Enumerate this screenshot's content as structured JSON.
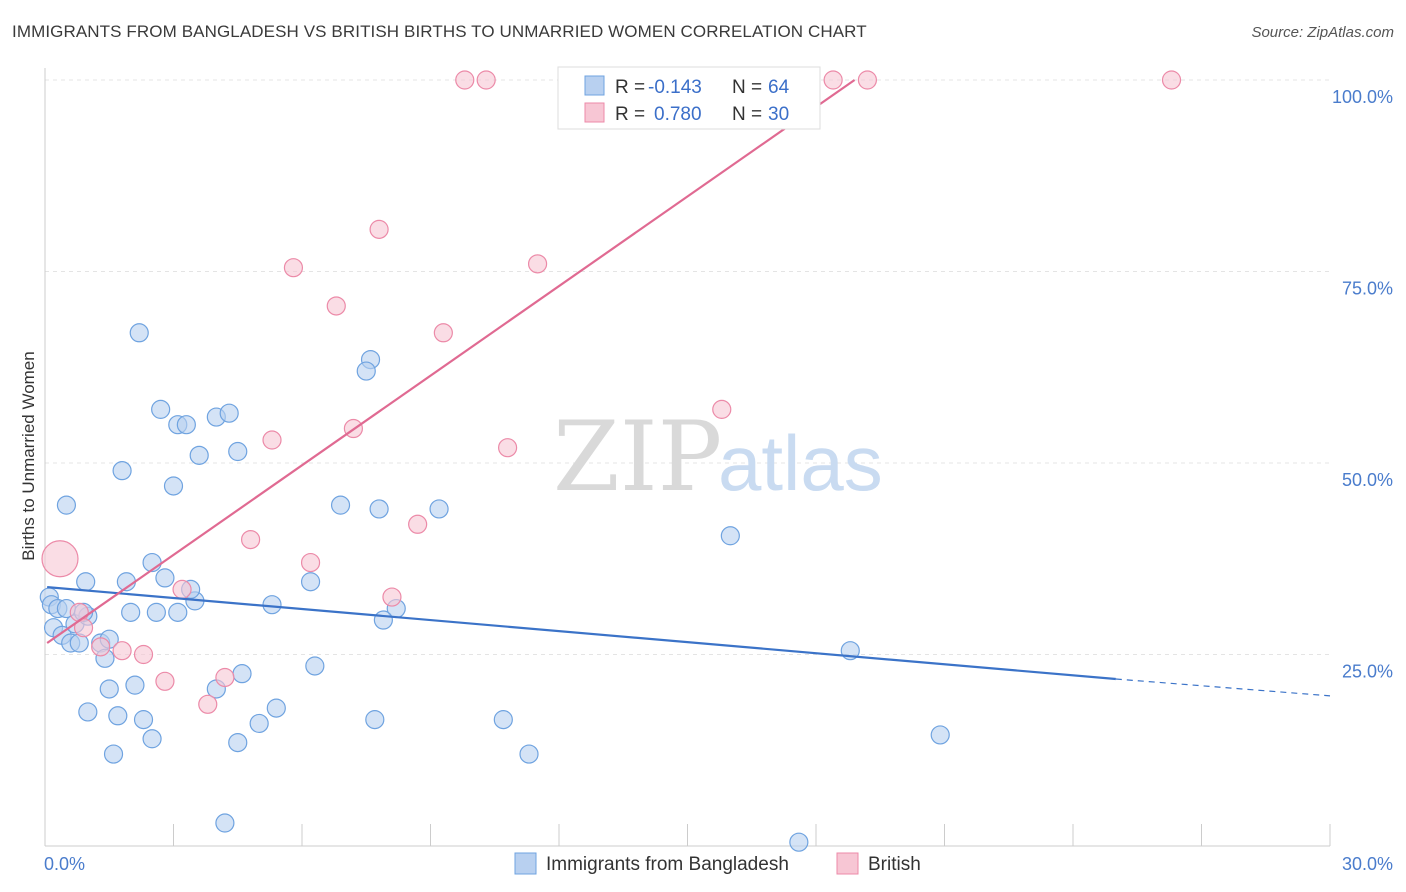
{
  "header": {
    "title": "IMMIGRANTS FROM BANGLADESH VS BRITISH BIRTHS TO UNMARRIED WOMEN CORRELATION CHART",
    "source": "Source: ZipAtlas.com"
  },
  "watermark": {
    "zip": "ZIP",
    "atlas": "atlas"
  },
  "legend_top": {
    "row1": {
      "r_label": "R =",
      "r_value": "-0.143",
      "n_label": "N =",
      "n_value": "64"
    },
    "row2": {
      "r_label": "R =",
      "r_value": "0.780",
      "n_label": "N =",
      "n_value": "30"
    }
  },
  "chart_data": {
    "type": "scatter",
    "title": "IMMIGRANTS FROM BANGLADESH VS BRITISH BIRTHS TO UNMARRIED WOMEN CORRELATION CHART",
    "xlabel": "",
    "ylabel": "Births to Unmarried Women",
    "xlim": [
      0,
      30
    ],
    "ylim": [
      0,
      102
    ],
    "x_tick_labels": [
      "0.0%",
      "30.0%"
    ],
    "y_ticks": [
      25,
      50,
      75,
      100
    ],
    "y_tick_labels": [
      "25.0%",
      "50.0%",
      "75.0%",
      "100.0%"
    ],
    "grid": true,
    "legend": "bottom",
    "colors": {
      "blue": "#6fa3e0",
      "blue_fill": "#b8d0f0",
      "pink": "#ec8aa8",
      "pink_fill": "#f7c6d4",
      "blue_line": "#3b73c8",
      "pink_line": "#e06a92"
    },
    "series": [
      {
        "name": "Immigrants from Bangladesh",
        "color": "blue",
        "trend": {
          "x1": 0.05,
          "y1": 33.8,
          "x2": 25.0,
          "y2": 21.8,
          "dash_to_x": 30.0,
          "dash_to_y": 19.6
        },
        "points": [
          [
            0.1,
            32.5
          ],
          [
            0.15,
            31.5
          ],
          [
            0.3,
            31.0
          ],
          [
            0.5,
            31.0
          ],
          [
            0.2,
            28.5
          ],
          [
            0.4,
            27.5
          ],
          [
            0.6,
            26.5
          ],
          [
            0.8,
            26.5
          ],
          [
            0.7,
            29.0
          ],
          [
            1.0,
            30.0
          ],
          [
            0.9,
            30.5
          ],
          [
            1.3,
            26.5
          ],
          [
            1.5,
            27.0
          ],
          [
            1.4,
            24.5
          ],
          [
            0.95,
            34.5
          ],
          [
            0.5,
            44.5
          ],
          [
            1.8,
            49.0
          ],
          [
            2.2,
            67.0
          ],
          [
            2.5,
            37.0
          ],
          [
            1.9,
            34.5
          ],
          [
            2.0,
            30.5
          ],
          [
            2.6,
            30.5
          ],
          [
            2.8,
            35.0
          ],
          [
            3.0,
            47.0
          ],
          [
            3.1,
            55.0
          ],
          [
            3.3,
            55.0
          ],
          [
            3.5,
            32.0
          ],
          [
            3.4,
            33.5
          ],
          [
            3.1,
            30.5
          ],
          [
            3.6,
            51.0
          ],
          [
            2.7,
            57.0
          ],
          [
            4.0,
            56.0
          ],
          [
            4.3,
            56.5
          ],
          [
            4.5,
            51.5
          ],
          [
            1.5,
            20.5
          ],
          [
            1.7,
            17.0
          ],
          [
            2.1,
            21.0
          ],
          [
            2.3,
            16.5
          ],
          [
            2.5,
            14.0
          ],
          [
            1.0,
            17.5
          ],
          [
            1.6,
            12.0
          ],
          [
            4.0,
            20.5
          ],
          [
            4.6,
            22.5
          ],
          [
            4.5,
            13.5
          ],
          [
            5.3,
            31.5
          ],
          [
            5.0,
            16.0
          ],
          [
            5.4,
            18.0
          ],
          [
            6.2,
            34.5
          ],
          [
            6.3,
            23.5
          ],
          [
            6.9,
            44.5
          ],
          [
            7.6,
            63.5
          ],
          [
            7.5,
            62.0
          ],
          [
            7.8,
            44.0
          ],
          [
            7.7,
            16.5
          ],
          [
            8.2,
            31.0
          ],
          [
            7.9,
            29.5
          ],
          [
            9.2,
            44.0
          ],
          [
            10.7,
            16.5
          ],
          [
            11.3,
            12.0
          ],
          [
            16.0,
            40.5
          ],
          [
            18.8,
            25.5
          ],
          [
            20.9,
            14.5
          ],
          [
            17.6,
            0.5
          ],
          [
            4.2,
            3.0
          ]
        ]
      },
      {
        "name": "British",
        "color": "pink",
        "trend": {
          "x1": 0.05,
          "y1": 26.5,
          "x2": 18.9,
          "y2": 100.0
        },
        "points": [
          [
            0.35,
            37.5
          ],
          [
            0.8,
            30.5
          ],
          [
            0.9,
            28.5
          ],
          [
            1.3,
            26.0
          ],
          [
            1.8,
            25.5
          ],
          [
            2.3,
            25.0
          ],
          [
            2.8,
            21.5
          ],
          [
            3.2,
            33.5
          ],
          [
            3.8,
            18.5
          ],
          [
            4.2,
            22.0
          ],
          [
            4.8,
            40.0
          ],
          [
            5.3,
            53.0
          ],
          [
            5.8,
            75.5
          ],
          [
            6.2,
            37.0
          ],
          [
            6.8,
            70.5
          ],
          [
            7.2,
            54.5
          ],
          [
            7.8,
            80.5
          ],
          [
            8.1,
            32.5
          ],
          [
            8.7,
            42.0
          ],
          [
            9.3,
            67.0
          ],
          [
            9.8,
            100.0
          ],
          [
            10.3,
            100.0
          ],
          [
            10.8,
            52.0
          ],
          [
            11.5,
            76.0
          ],
          [
            12.3,
            100.0
          ],
          [
            13.7,
            100.0
          ],
          [
            15.8,
            57.0
          ],
          [
            18.4,
            100.0
          ],
          [
            19.2,
            100.0
          ],
          [
            26.3,
            100.0
          ]
        ]
      }
    ]
  }
}
